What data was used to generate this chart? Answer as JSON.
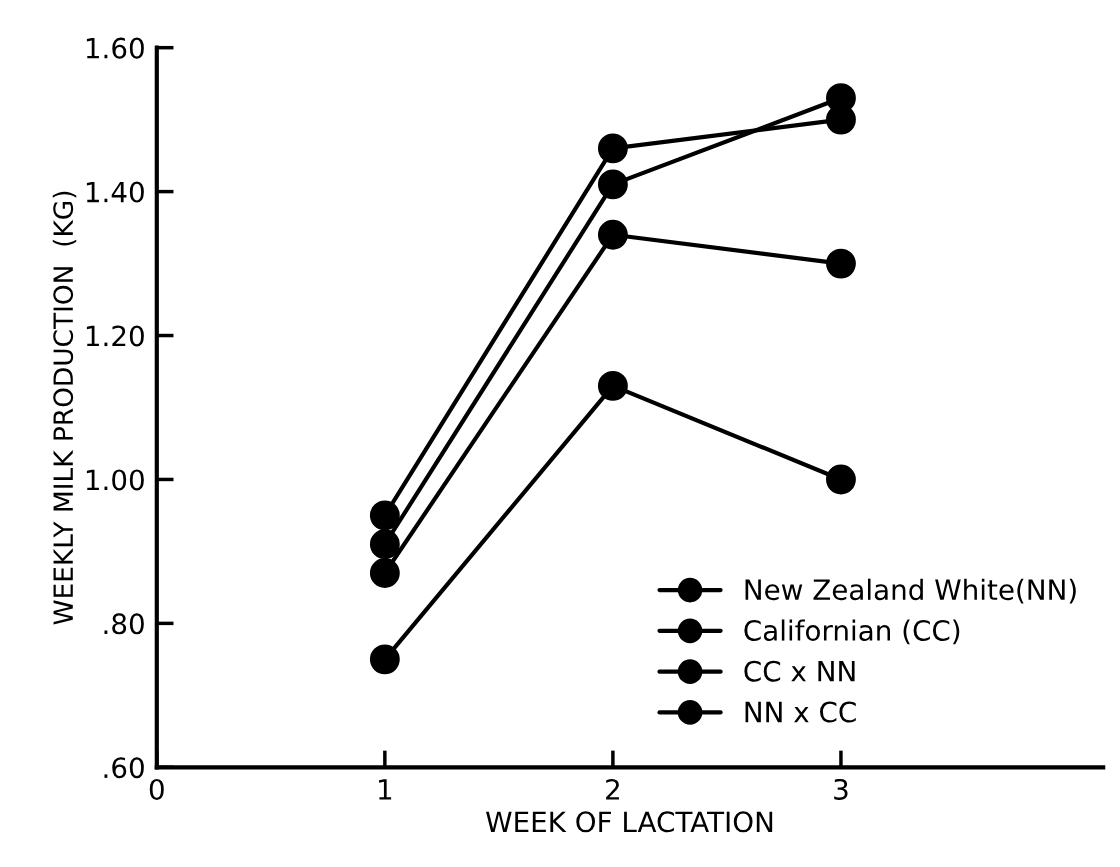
{
  "chart_data": {
    "type": "line",
    "xlabel": "WEEK OF LACTATION",
    "ylabel": "WEEKLY MILK PRODUCTION  (KG)",
    "x": [
      1,
      2,
      3
    ],
    "series": [
      {
        "name": "New Zealand White(NN)",
        "color": "#000000",
        "values": [
          0.91,
          1.41,
          1.53
        ]
      },
      {
        "name": "Californian (CC)",
        "color": "#000000",
        "values": [
          0.75,
          1.13,
          1.0
        ]
      },
      {
        "name": "CC x NN",
        "color": "#000000",
        "values": [
          0.95,
          1.46,
          1.5
        ]
      },
      {
        "name": "NN x CC",
        "color": "#000000",
        "values": [
          0.87,
          1.34,
          1.3
        ]
      }
    ],
    "xlim": [
      0,
      4.15
    ],
    "xticks": [
      0,
      1,
      2,
      3
    ],
    "ylim": [
      0.6,
      1.6
    ],
    "yticks": [
      {
        "value": 0.6,
        "label": ".60"
      },
      {
        "value": 0.8,
        "label": ".80"
      },
      {
        "value": 1.0,
        "label": "1.00"
      },
      {
        "value": 1.2,
        "label": "1.20"
      },
      {
        "value": 1.4,
        "label": "1.40"
      },
      {
        "value": 1.6,
        "label": "1.60"
      }
    ],
    "grid": false,
    "legend": "bottom right",
    "marker": "circle",
    "line_style": "solid"
  }
}
